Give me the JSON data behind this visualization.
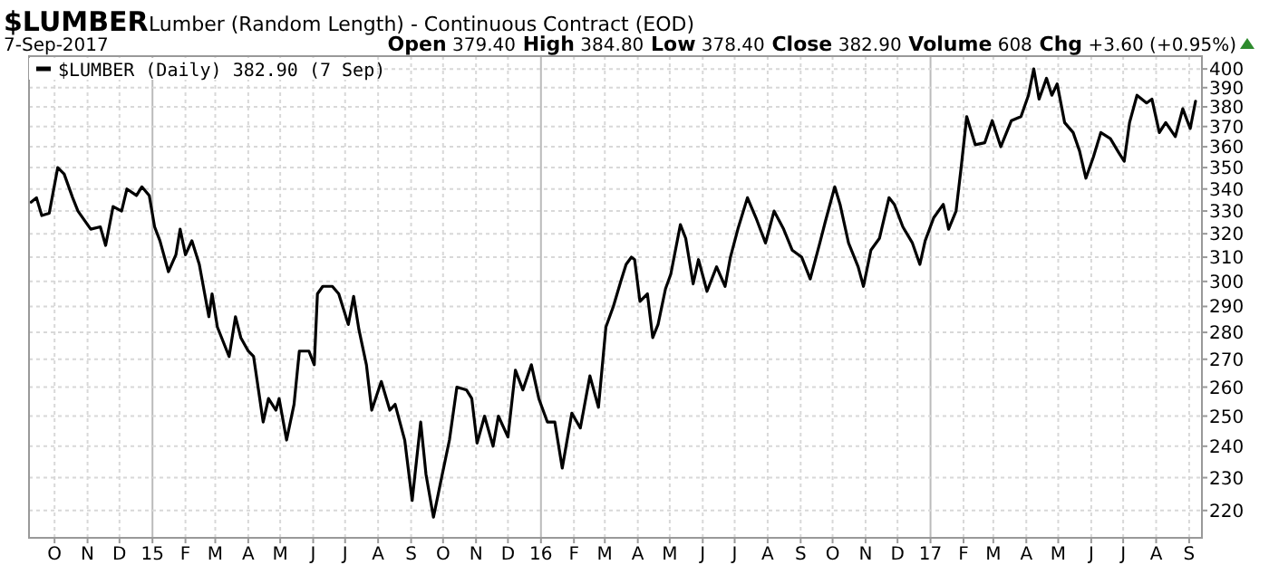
{
  "chart_data": {
    "type": "line",
    "title": "$LUMBER",
    "subtitle": "Lumber (Random Length) - Continuous Contract (EOD)",
    "annotations": [
      "7-Sep-2017",
      "Open 379.40 High 384.80 Low 378.40 Close 382.90 Volume 608 Chg +3.60 (+0.95%)"
    ],
    "log": "y",
    "grid": true,
    "legend": "top left",
    "marker": "none",
    "line_style": "solid",
    "xlim": [
      "2014-09-07",
      "2017-09-13"
    ],
    "ylim": [
      212,
      407
    ],
    "yticks": [
      220,
      230,
      240,
      250,
      260,
      270,
      280,
      290,
      300,
      310,
      320,
      330,
      340,
      350,
      360,
      370,
      380,
      390,
      400
    ],
    "xticks": [
      {
        "value": "2014-10-01",
        "label": "O"
      },
      {
        "value": "2014-11-01",
        "label": "N"
      },
      {
        "value": "2014-12-01",
        "label": "D"
      },
      {
        "value": "2015-01-01",
        "label": "15"
      },
      {
        "value": "2015-02-01",
        "label": "F"
      },
      {
        "value": "2015-03-01",
        "label": "M"
      },
      {
        "value": "2015-04-01",
        "label": "A"
      },
      {
        "value": "2015-05-01",
        "label": "M"
      },
      {
        "value": "2015-06-01",
        "label": "J"
      },
      {
        "value": "2015-07-01",
        "label": "J"
      },
      {
        "value": "2015-08-01",
        "label": "A"
      },
      {
        "value": "2015-09-01",
        "label": "S"
      },
      {
        "value": "2015-10-01",
        "label": "O"
      },
      {
        "value": "2015-11-01",
        "label": "N"
      },
      {
        "value": "2015-12-01",
        "label": "D"
      },
      {
        "value": "2016-01-01",
        "label": "16"
      },
      {
        "value": "2016-02-01",
        "label": "F"
      },
      {
        "value": "2016-03-01",
        "label": "M"
      },
      {
        "value": "2016-04-01",
        "label": "A"
      },
      {
        "value": "2016-05-01",
        "label": "M"
      },
      {
        "value": "2016-06-01",
        "label": "J"
      },
      {
        "value": "2016-07-01",
        "label": "J"
      },
      {
        "value": "2016-08-01",
        "label": "A"
      },
      {
        "value": "2016-09-01",
        "label": "S"
      },
      {
        "value": "2016-10-01",
        "label": "O"
      },
      {
        "value": "2016-11-01",
        "label": "N"
      },
      {
        "value": "2016-12-01",
        "label": "D"
      },
      {
        "value": "2017-01-01",
        "label": "17"
      },
      {
        "value": "2017-02-01",
        "label": "F"
      },
      {
        "value": "2017-03-01",
        "label": "M"
      },
      {
        "value": "2017-04-01",
        "label": "A"
      },
      {
        "value": "2017-05-01",
        "label": "M"
      },
      {
        "value": "2017-06-01",
        "label": "J"
      },
      {
        "value": "2017-07-01",
        "label": "J"
      },
      {
        "value": "2017-08-01",
        "label": "A"
      },
      {
        "value": "2017-09-01",
        "label": "S"
      }
    ],
    "x": [
      "2014-09-09",
      "2014-09-14",
      "2014-09-19",
      "2014-09-26",
      "2014-10-04",
      "2014-10-10",
      "2014-10-18",
      "2014-10-23",
      "2014-11-04",
      "2014-11-13",
      "2014-11-18",
      "2014-11-25",
      "2014-12-03",
      "2014-12-08",
      "2014-12-17",
      "2014-12-22",
      "2014-12-29",
      "2015-01-03",
      "2015-01-08",
      "2015-01-16",
      "2015-01-23",
      "2015-01-27",
      "2015-02-01",
      "2015-02-07",
      "2015-02-14",
      "2015-02-23",
      "2015-02-26",
      "2015-03-03",
      "2015-03-14",
      "2015-03-20",
      "2015-03-25",
      "2015-04-01",
      "2015-04-06",
      "2015-04-15",
      "2015-04-20",
      "2015-04-27",
      "2015-04-30",
      "2015-05-07",
      "2015-05-14",
      "2015-05-19",
      "2015-05-28",
      "2015-06-02",
      "2015-06-05",
      "2015-06-10",
      "2015-06-19",
      "2015-06-25",
      "2015-07-04",
      "2015-07-09",
      "2015-07-14",
      "2015-07-21",
      "2015-07-26",
      "2015-08-04",
      "2015-08-12",
      "2015-08-17",
      "2015-08-26",
      "2015-09-02",
      "2015-09-10",
      "2015-09-15",
      "2015-09-22",
      "2015-09-29",
      "2015-10-07",
      "2015-10-14",
      "2015-10-23",
      "2015-10-28",
      "2015-11-02",
      "2015-11-09",
      "2015-11-17",
      "2015-11-22",
      "2015-12-01",
      "2015-12-08",
      "2015-12-15",
      "2015-12-23",
      "2015-12-30",
      "2016-01-07",
      "2016-01-14",
      "2016-01-21",
      "2016-01-30",
      "2016-02-07",
      "2016-02-16",
      "2016-02-24",
      "2016-03-02",
      "2016-03-09",
      "2016-03-16",
      "2016-03-21",
      "2016-03-26",
      "2016-03-29",
      "2016-04-03",
      "2016-04-10",
      "2016-04-15",
      "2016-04-20",
      "2016-04-27",
      "2016-05-02",
      "2016-05-11",
      "2016-05-16",
      "2016-05-23",
      "2016-05-28",
      "2016-06-05",
      "2016-06-14",
      "2016-06-22",
      "2016-06-27",
      "2016-07-04",
      "2016-07-13",
      "2016-07-21",
      "2016-07-30",
      "2016-08-07",
      "2016-08-16",
      "2016-08-24",
      "2016-09-02",
      "2016-09-10",
      "2016-09-19",
      "2016-09-24",
      "2016-10-03",
      "2016-10-08",
      "2016-10-16",
      "2016-10-25",
      "2016-10-30",
      "2016-11-06",
      "2016-11-14",
      "2016-11-23",
      "2016-11-28",
      "2016-12-06",
      "2016-12-15",
      "2016-12-22",
      "2016-12-27",
      "2017-01-04",
      "2017-01-13",
      "2017-01-18",
      "2017-01-25",
      "2017-01-30",
      "2017-02-04",
      "2017-02-12",
      "2017-02-21",
      "2017-02-28",
      "2017-03-08",
      "2017-03-18",
      "2017-03-27",
      "2017-04-03",
      "2017-04-08",
      "2017-04-13",
      "2017-04-20",
      "2017-04-25",
      "2017-04-30",
      "2017-05-07",
      "2017-05-15",
      "2017-05-21",
      "2017-05-27",
      "2017-06-03",
      "2017-06-10",
      "2017-06-19",
      "2017-06-27",
      "2017-07-02",
      "2017-07-07",
      "2017-07-14",
      "2017-07-23",
      "2017-07-28",
      "2017-08-04",
      "2017-08-10",
      "2017-08-19",
      "2017-08-26",
      "2017-09-02",
      "2017-09-07"
    ],
    "series": [
      {
        "name": "$LUMBER (Daily) 382.90 (7 Sep)",
        "color": "#000000",
        "values": [
          334,
          336,
          328,
          329,
          350,
          347,
          336,
          330,
          322,
          323,
          315,
          332,
          330,
          340,
          337,
          341,
          337,
          323,
          317,
          304,
          311,
          322,
          311,
          317,
          307,
          286,
          295,
          282,
          271,
          286,
          278,
          273,
          271,
          248,
          256,
          252,
          256,
          242,
          254,
          273,
          273,
          268,
          295,
          298,
          298,
          295,
          283,
          294,
          281,
          268,
          252,
          262,
          252,
          254,
          242,
          223,
          248,
          231,
          218,
          229,
          242,
          260,
          259,
          256,
          241,
          250,
          240,
          250,
          243,
          266,
          259,
          268,
          256,
          248,
          248,
          233,
          251,
          246,
          264,
          253,
          282,
          290,
          300,
          307,
          310,
          309,
          292,
          295,
          278,
          283,
          297,
          303,
          324,
          318,
          299,
          309,
          296,
          306,
          298,
          310,
          322,
          336,
          327,
          316,
          330,
          322,
          313,
          310,
          301,
          316,
          325,
          341,
          333,
          316,
          306,
          298,
          313,
          318,
          336,
          333,
          323,
          316,
          307,
          317,
          327,
          333,
          322,
          330,
          351,
          375,
          361,
          362,
          373,
          360,
          373,
          375,
          386,
          400,
          384,
          395,
          386,
          392,
          372,
          367,
          358,
          345,
          355,
          367,
          364,
          357,
          353,
          372,
          386,
          382,
          384,
          367,
          372,
          365,
          379,
          369,
          382.9
        ]
      }
    ]
  }
}
